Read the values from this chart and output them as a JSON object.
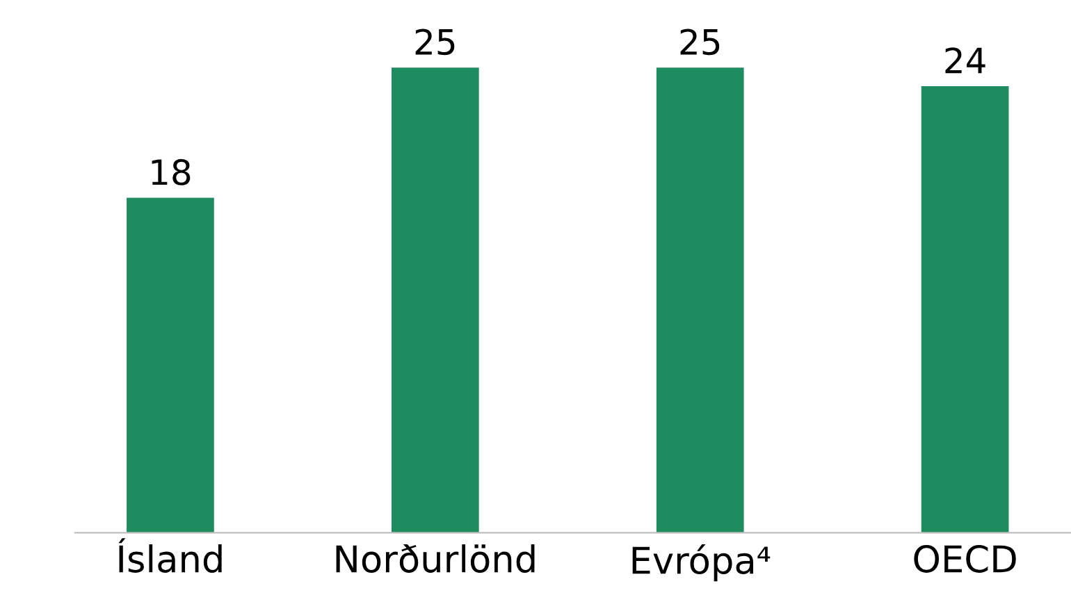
{
  "chart_data": {
    "type": "bar",
    "categories": [
      "Ísland",
      "Norðurlönd",
      "Evrópa⁴",
      "OECD"
    ],
    "values": [
      18,
      25,
      25,
      24
    ],
    "color": "#1f8c5f",
    "data_labels": true,
    "grid": false,
    "legend": false
  }
}
